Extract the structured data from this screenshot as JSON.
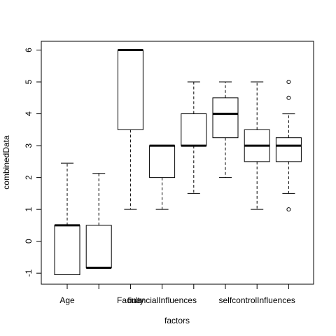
{
  "chart_data": {
    "type": "boxplot",
    "xlabel": "factors",
    "ylabel": "combinedData",
    "ylim": [
      -1.3,
      6.3
    ],
    "y_ticks": [
      -1,
      0,
      1,
      2,
      3,
      4,
      5,
      6
    ],
    "x_tick_labels": [
      "Age",
      "",
      "Faculty",
      "financialInfluences",
      "",
      "",
      "selfcontrolInfluences",
      ""
    ],
    "boxes": [
      {
        "whisker_low": -1.05,
        "q1": -1.05,
        "median": 0.5,
        "q3": 0.5,
        "whisker_high": 2.45,
        "outliers": []
      },
      {
        "whisker_low": -0.83,
        "q1": -0.83,
        "median": -0.83,
        "q3": 0.5,
        "whisker_high": 2.13,
        "outliers": []
      },
      {
        "whisker_low": 1.0,
        "q1": 3.5,
        "median": 6.0,
        "q3": 6.0,
        "whisker_high": 6.0,
        "outliers": []
      },
      {
        "whisker_low": 1.0,
        "q1": 2.0,
        "median": 3.0,
        "q3": 3.0,
        "whisker_high": 3.0,
        "outliers": []
      },
      {
        "whisker_low": 1.5,
        "q1": 3.0,
        "median": 3.0,
        "q3": 4.0,
        "whisker_high": 5.0,
        "outliers": []
      },
      {
        "whisker_low": 2.0,
        "q1": 3.25,
        "median": 4.0,
        "q3": 4.5,
        "whisker_high": 5.0,
        "outliers": []
      },
      {
        "whisker_low": 1.0,
        "q1": 2.5,
        "median": 3.0,
        "q3": 3.5,
        "whisker_high": 5.0,
        "outliers": []
      },
      {
        "whisker_low": 1.5,
        "q1": 2.5,
        "median": 3.0,
        "q3": 3.25,
        "whisker_high": 4.0,
        "outliers": [
          1.0,
          4.5,
          5.0
        ]
      }
    ]
  }
}
